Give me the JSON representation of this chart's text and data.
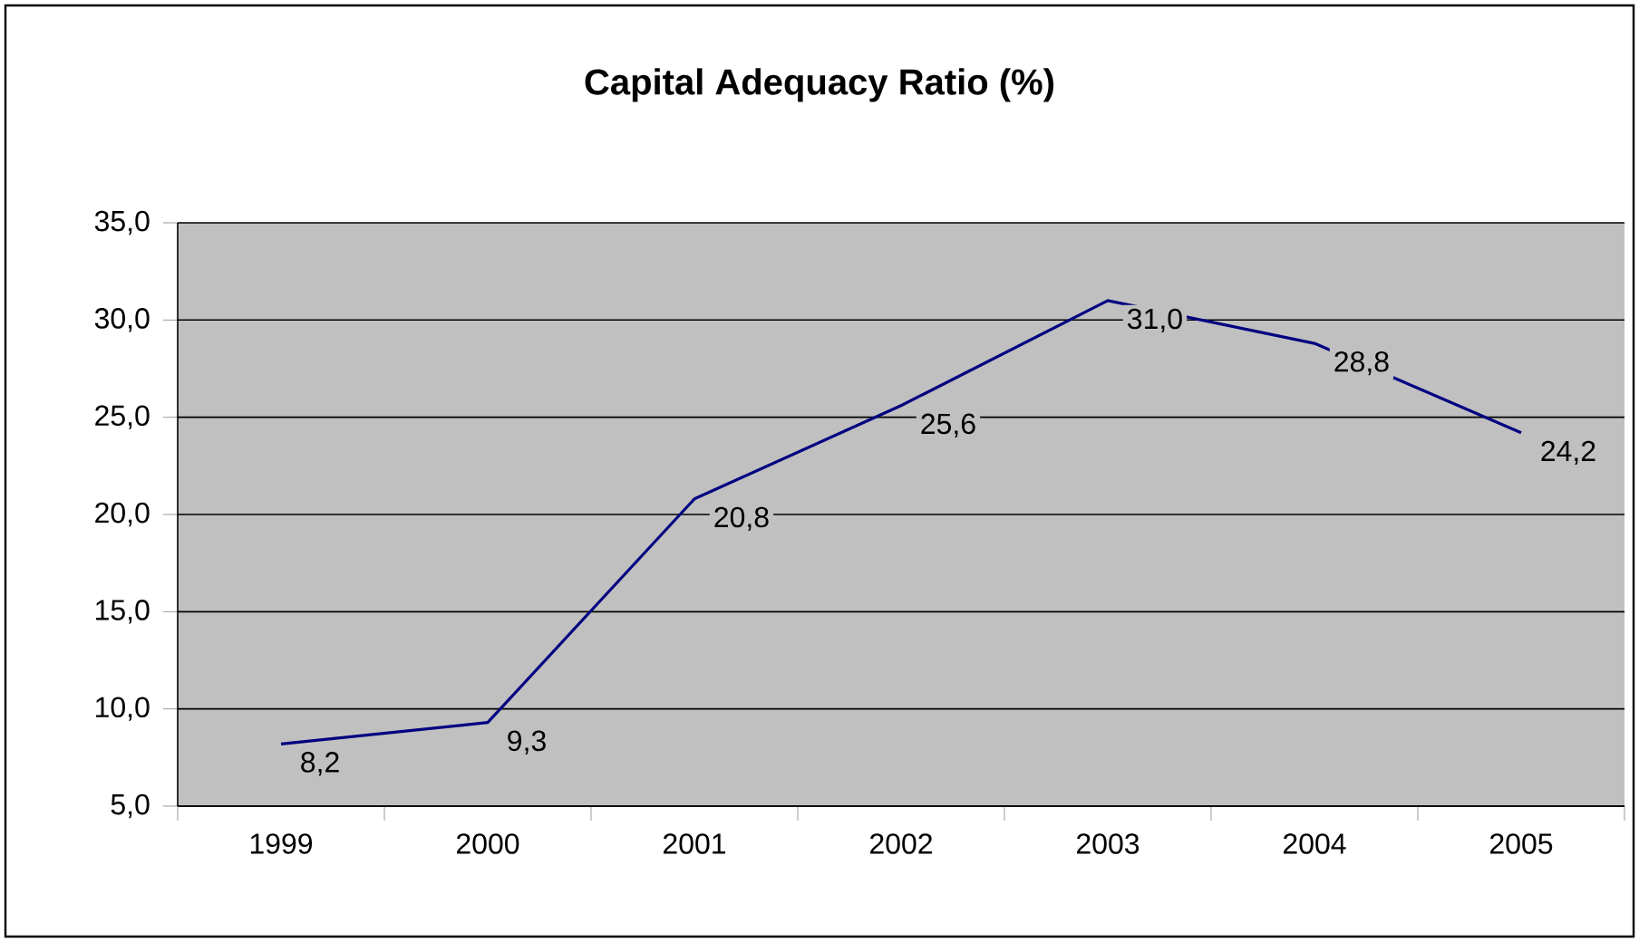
{
  "chart_data": {
    "type": "line",
    "title": "Capital Adequacy Ratio (%)",
    "categories": [
      "1999",
      "2000",
      "2001",
      "2002",
      "2003",
      "2004",
      "2005"
    ],
    "values": [
      8.2,
      9.3,
      20.8,
      25.6,
      31.0,
      28.8,
      24.2
    ],
    "value_labels": [
      "8,2",
      "9,3",
      "20,8",
      "25,6",
      "31,0",
      "28,8",
      "24,2"
    ],
    "color": "#000080",
    "ylim": [
      5,
      35
    ],
    "yticks": [
      {
        "value": 5,
        "label": "5,0"
      },
      {
        "value": 10,
        "label": "10,0"
      },
      {
        "value": 15,
        "label": "15,0"
      },
      {
        "value": 20,
        "label": "20,0"
      },
      {
        "value": 25,
        "label": "25,0"
      },
      {
        "value": 30,
        "label": "30,0"
      },
      {
        "value": 35,
        "label": "35,0"
      }
    ],
    "grid": "y",
    "marker": "none",
    "line_style": "solid"
  }
}
